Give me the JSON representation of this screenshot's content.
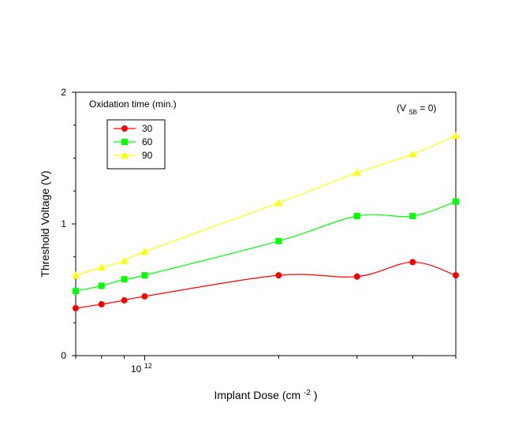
{
  "chart_data": {
    "type": "line",
    "xlabel": "Implant Dose (cm",
    "xlabel_sup": "-2",
    "ylabel": "Threshold Voltage (V)",
    "x_scale": "log",
    "x_tick_label": {
      "base": "10",
      "exp": "12"
    },
    "x": [
      700000000000.0,
      800000000000.0,
      900000000000.0,
      1000000000000.0,
      2000000000000.0,
      3000000000000.0,
      4000000000000.0,
      5000000000000.0
    ],
    "xlim": [
      700000000000.0,
      5000000000000.0
    ],
    "ylim": [
      0,
      2
    ],
    "y_ticks": [
      "0",
      "1",
      "2"
    ],
    "legend_title": "Oxidation time (min.)",
    "legend_position": "top-left",
    "annotation": {
      "prefix": "(V",
      "sub": "SB",
      "suffix": " = 0)"
    },
    "series": [
      {
        "name": "30",
        "color": "#ff0000",
        "marker": "circle",
        "values": [
          0.36,
          0.39,
          0.42,
          0.45,
          0.61,
          0.6,
          0.71,
          0.61
        ]
      },
      {
        "name": "60",
        "color": "#00ff00",
        "marker": "square",
        "values": [
          0.49,
          0.53,
          0.58,
          0.61,
          0.87,
          1.06,
          1.06,
          1.17
        ]
      },
      {
        "name": "90",
        "color": "#ffff00",
        "marker": "triangle",
        "values": [
          0.61,
          0.67,
          0.72,
          0.79,
          1.16,
          1.39,
          1.53,
          1.67
        ]
      }
    ]
  }
}
